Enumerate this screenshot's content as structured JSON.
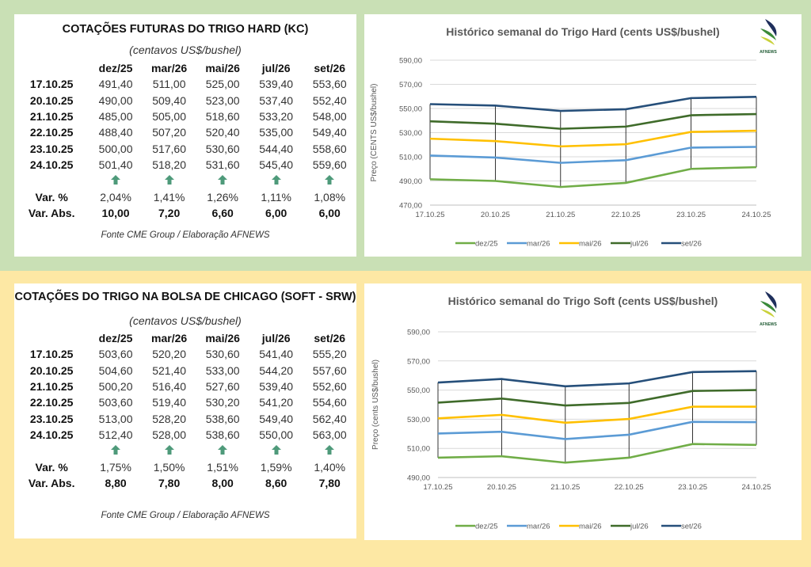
{
  "hard_table": {
    "title": "COTAÇÕES FUTURAS DO TRIGO HARD (KC)",
    "subtitle": "(centavos US$/bushel)",
    "columns": [
      "dez/25",
      "mar/26",
      "mai/26",
      "jul/26",
      "set/26"
    ],
    "rows": [
      {
        "date": "17.10.25",
        "values": [
          "491,40",
          "511,00",
          "525,00",
          "539,40",
          "553,60"
        ]
      },
      {
        "date": "20.10.25",
        "values": [
          "490,00",
          "509,40",
          "523,00",
          "537,40",
          "552,40"
        ]
      },
      {
        "date": "21.10.25",
        "values": [
          "485,00",
          "505,00",
          "518,60",
          "533,20",
          "548,00"
        ]
      },
      {
        "date": "22.10.25",
        "values": [
          "488,40",
          "507,20",
          "520,40",
          "535,00",
          "549,40"
        ]
      },
      {
        "date": "23.10.25",
        "values": [
          "500,00",
          "517,60",
          "530,60",
          "544,40",
          "558,60"
        ]
      },
      {
        "date": "24.10.25",
        "values": [
          "501,40",
          "518,20",
          "531,60",
          "545,40",
          "559,60"
        ]
      }
    ],
    "trend_icons": [
      "arrow-up-icon",
      "arrow-up-icon",
      "arrow-up-icon",
      "arrow-up-icon",
      "arrow-up-icon"
    ],
    "var_pct_label": "Var. %",
    "var_pct": [
      "2,04%",
      "1,41%",
      "1,26%",
      "1,11%",
      "1,08%"
    ],
    "var_abs_label": "Var. Abs.",
    "var_abs": [
      "10,00",
      "7,20",
      "6,60",
      "6,00",
      "6,00"
    ],
    "source": "Fonte CME Group / Elaboração AFNEWS"
  },
  "soft_table": {
    "title": "COTAÇÕES DO TRIGO NA BOLSA DE CHICAGO (SOFT - SRW)",
    "subtitle": "(centavos US$/bushel)",
    "columns": [
      "dez/25",
      "mar/26",
      "mai/26",
      "jul/26",
      "set/26"
    ],
    "rows": [
      {
        "date": "17.10.25",
        "values": [
          "503,60",
          "520,20",
          "530,60",
          "541,40",
          "555,20"
        ]
      },
      {
        "date": "20.10.25",
        "values": [
          "504,60",
          "521,40",
          "533,00",
          "544,20",
          "557,60"
        ]
      },
      {
        "date": "21.10.25",
        "values": [
          "500,20",
          "516,40",
          "527,60",
          "539,40",
          "552,60"
        ]
      },
      {
        "date": "22.10.25",
        "values": [
          "503,60",
          "519,40",
          "530,20",
          "541,20",
          "554,60"
        ]
      },
      {
        "date": "23.10.25",
        "values": [
          "513,00",
          "528,20",
          "538,60",
          "549,40",
          "562,40"
        ]
      },
      {
        "date": "24.10.25",
        "values": [
          "512,40",
          "528,00",
          "538,60",
          "550,00",
          "563,00"
        ]
      }
    ],
    "trend_icons": [
      "arrow-up-icon",
      "arrow-up-icon",
      "arrow-up-icon",
      "arrow-up-icon",
      "arrow-up-icon"
    ],
    "var_pct_label": "Var. %",
    "var_pct": [
      "1,75%",
      "1,50%",
      "1,51%",
      "1,59%",
      "1,40%"
    ],
    "var_abs_label": "Var. Abs.",
    "var_abs": [
      "8,80",
      "7,80",
      "8,00",
      "8,60",
      "7,80"
    ],
    "source": "Fonte CME Group / Elaboração AFNEWS"
  },
  "colors": {
    "arrow": "#4e9a7a",
    "top_band": "#c9e0b5",
    "bottom_band": "#fde8a4"
  },
  "logo": {
    "text": "AFNEWS",
    "subtext": "AGRÍCOLA"
  },
  "chart_data": [
    {
      "type": "line",
      "title": "Histórico semanal do Trigo Hard (cents US$/bushel)",
      "ylabel": "Preço (CENTS  US$/bushel)",
      "xlabel": "",
      "x": [
        "17.10.25",
        "20.10.25",
        "21.10.25",
        "22.10.25",
        "23.10.25",
        "24.10.25"
      ],
      "ylim": [
        470,
        590
      ],
      "yticks": [
        "470,00",
        "490,00",
        "510,00",
        "530,00",
        "550,00",
        "570,00",
        "590,00"
      ],
      "grid": true,
      "hi_lo_lines": true,
      "legend": "bottom",
      "series": [
        {
          "name": "dez/25",
          "color": "#70ad47",
          "values": [
            491.4,
            490.0,
            485.0,
            488.4,
            500.0,
            501.4
          ]
        },
        {
          "name": "mar/26",
          "color": "#5b9bd5",
          "values": [
            511.0,
            509.4,
            505.0,
            507.2,
            517.6,
            518.2
          ]
        },
        {
          "name": "mai/26",
          "color": "#ffc000",
          "values": [
            525.0,
            523.0,
            518.6,
            520.4,
            530.6,
            531.6
          ]
        },
        {
          "name": "jul/26",
          "color": "#3f6b2a",
          "values": [
            539.4,
            537.4,
            533.2,
            535.0,
            544.4,
            545.4
          ]
        },
        {
          "name": "set/26",
          "color": "#264f7a",
          "values": [
            553.6,
            552.4,
            548.0,
            549.4,
            558.6,
            559.6
          ]
        }
      ]
    },
    {
      "type": "line",
      "title": "Histórico semanal do Trigo Soft (cents US$/bushel)",
      "ylabel": "Preço (cents US$/bushel)",
      "xlabel": "",
      "x": [
        "17.10.25",
        "20.10.25",
        "21.10.25",
        "22.10.25",
        "23.10.25",
        "24.10.25"
      ],
      "ylim": [
        490,
        590
      ],
      "yticks": [
        "490,00",
        "510,00",
        "530,00",
        "550,00",
        "570,00",
        "590,00"
      ],
      "grid": true,
      "hi_lo_lines": true,
      "legend": "bottom",
      "series": [
        {
          "name": "dez/25",
          "color": "#70ad47",
          "values": [
            503.6,
            504.6,
            500.2,
            503.6,
            513.0,
            512.4
          ]
        },
        {
          "name": "mar/26",
          "color": "#5b9bd5",
          "values": [
            520.2,
            521.4,
            516.4,
            519.4,
            528.2,
            528.0
          ]
        },
        {
          "name": "mai/26",
          "color": "#ffc000",
          "values": [
            530.6,
            533.0,
            527.6,
            530.2,
            538.6,
            538.6
          ]
        },
        {
          "name": "jul/26",
          "color": "#3f6b2a",
          "values": [
            541.4,
            544.2,
            539.4,
            541.2,
            549.4,
            550.0
          ]
        },
        {
          "name": "set/26",
          "color": "#264f7a",
          "values": [
            555.2,
            557.6,
            552.6,
            554.6,
            562.4,
            563.0
          ]
        }
      ]
    }
  ]
}
